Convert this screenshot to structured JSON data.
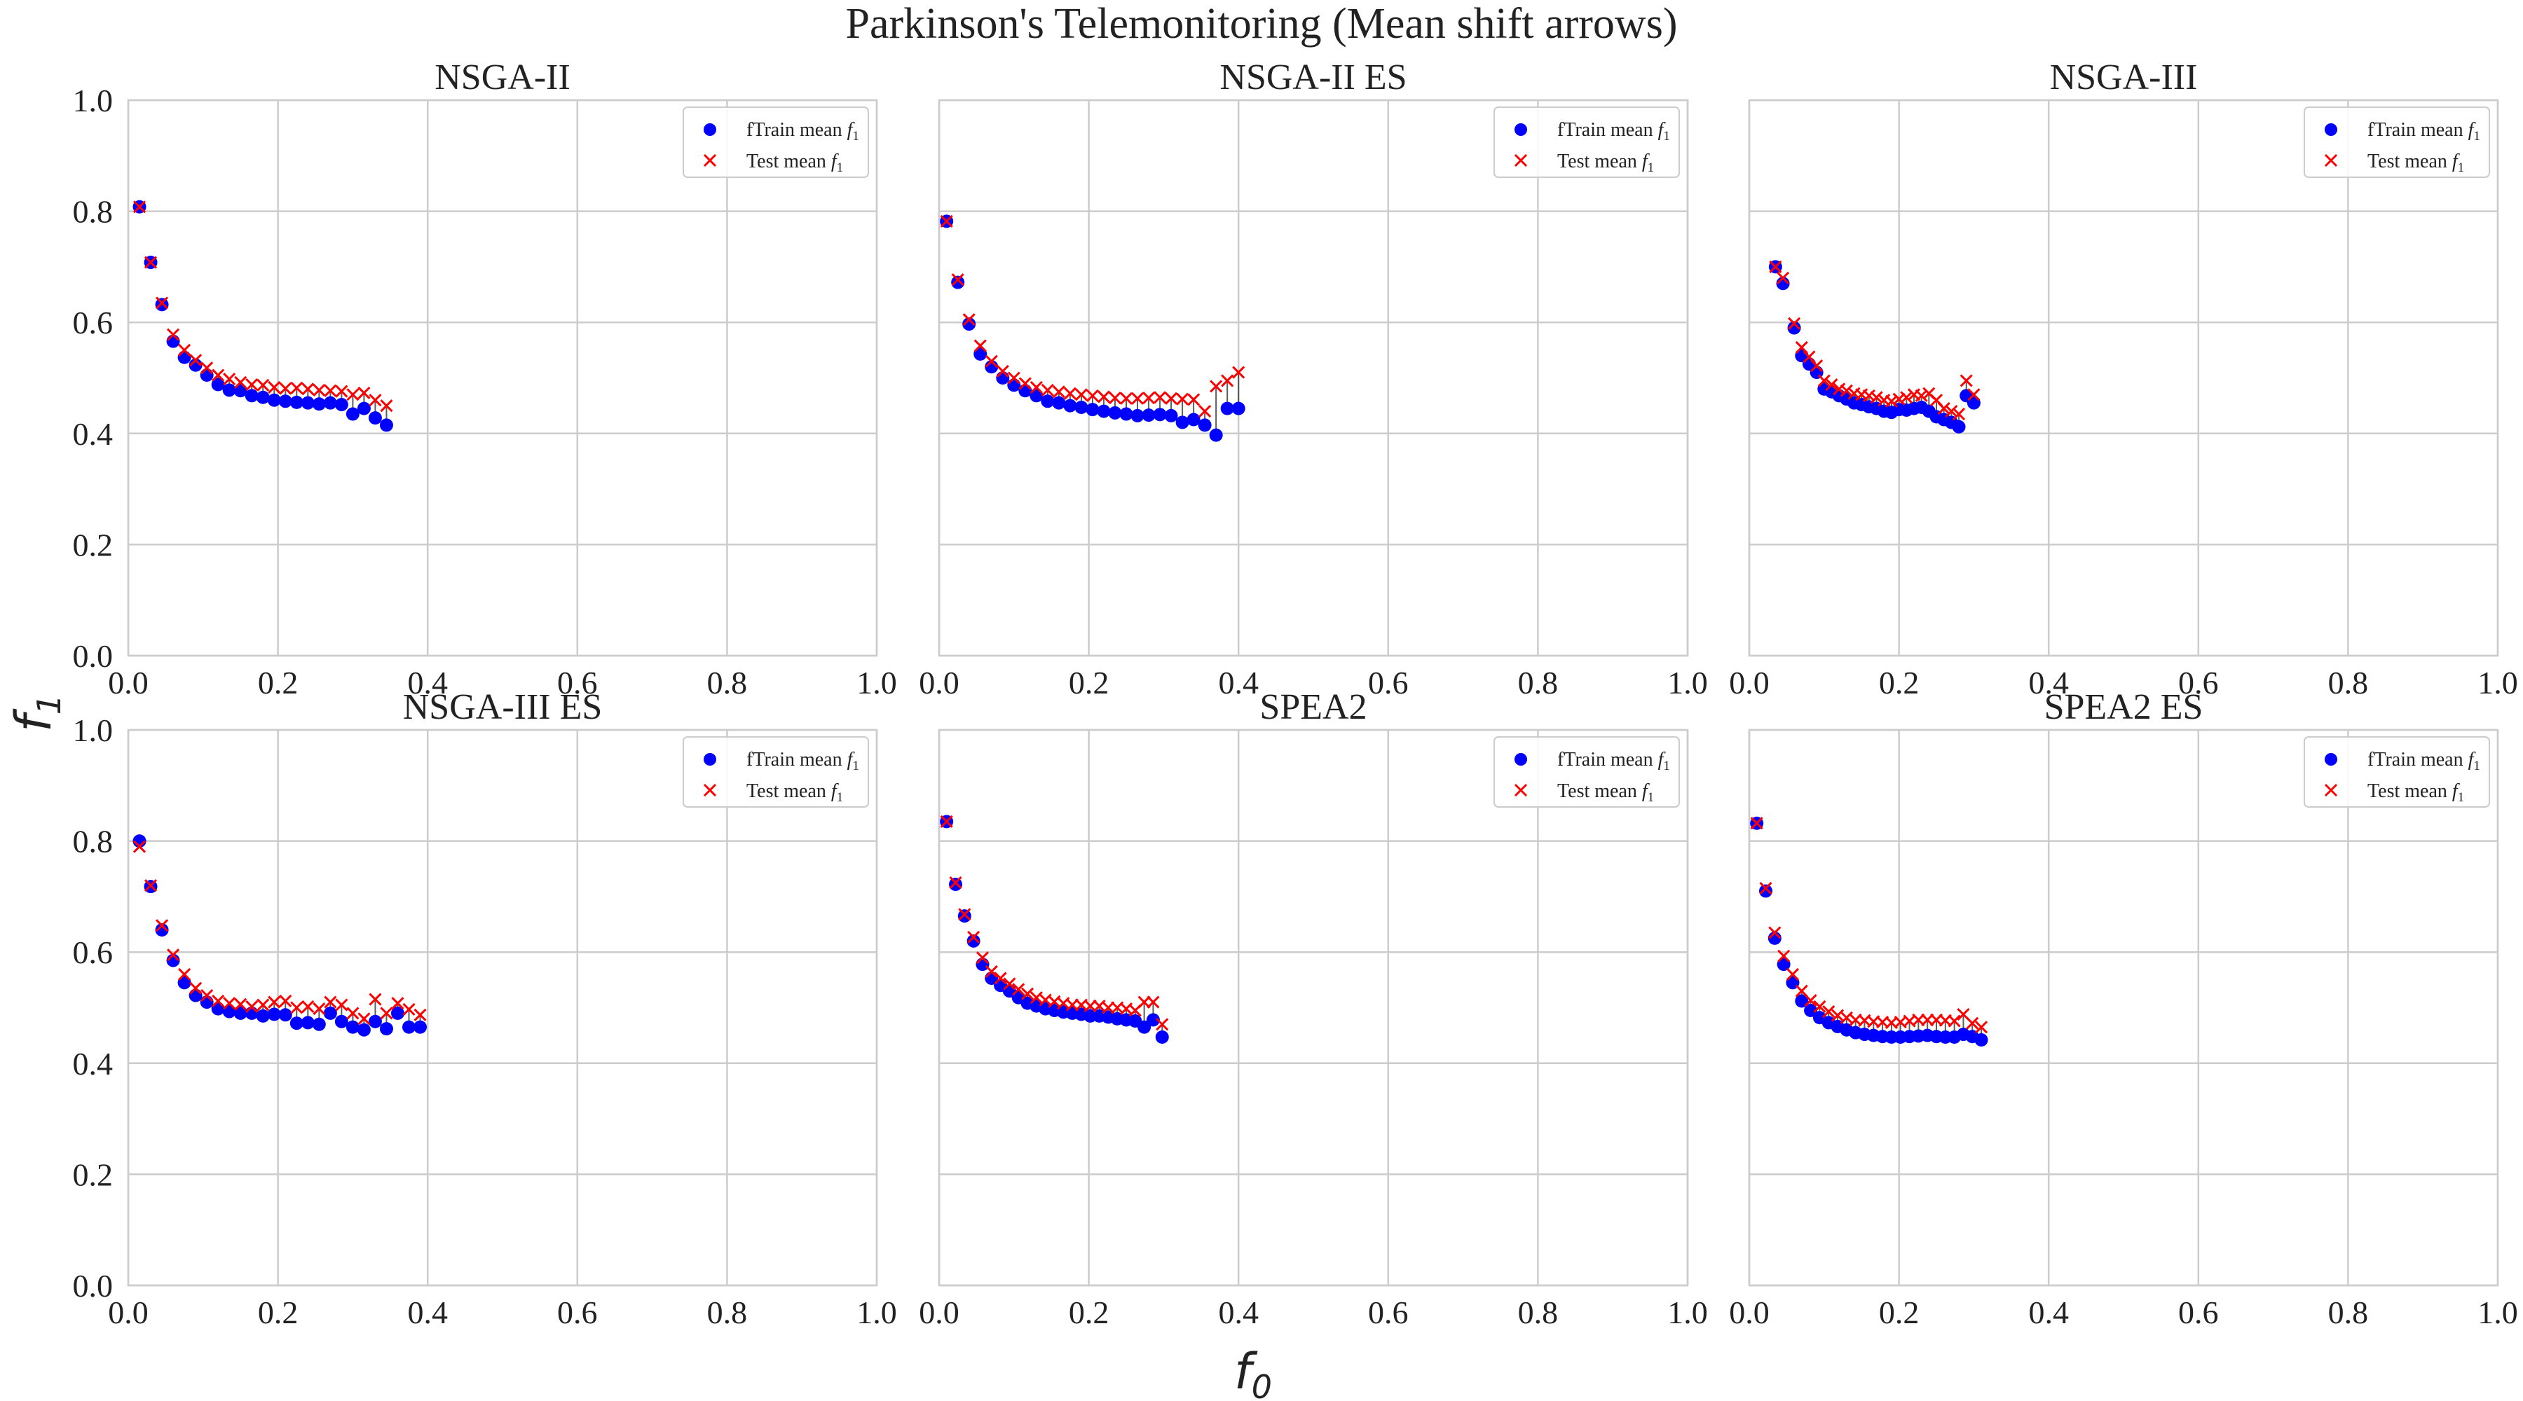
{
  "figure": {
    "suptitle": "Parkinson's Telemonitoring (Mean shift arrows)",
    "xlabel": "f",
    "xlabel_sub": "0",
    "ylabel": "f",
    "ylabel_sub": "1"
  },
  "colors": {
    "train": "#0000ff",
    "test": "#ff0000",
    "grid": "#cccccc",
    "arrow": "#333333"
  },
  "chart_data": [
    {
      "type": "scatter",
      "title": "NSGA-II",
      "xlim": [
        0,
        1
      ],
      "ylim": [
        0,
        1
      ],
      "xticks": [
        "0.0",
        "0.2",
        "0.4",
        "0.6",
        "0.8",
        "1.0"
      ],
      "yticks": [
        "0.0",
        "0.2",
        "0.4",
        "0.6",
        "0.8",
        "1.0"
      ],
      "grid": true,
      "legend_position": "upper right",
      "series": [
        {
          "name": "fTrain mean f1",
          "marker": "circle",
          "x": [
            0.015,
            0.03,
            0.045,
            0.06,
            0.075,
            0.09,
            0.105,
            0.12,
            0.135,
            0.15,
            0.165,
            0.18,
            0.195,
            0.21,
            0.225,
            0.24,
            0.255,
            0.27,
            0.285,
            0.3,
            0.315,
            0.33,
            0.345
          ],
          "y": [
            0.808,
            0.708,
            0.632,
            0.566,
            0.537,
            0.523,
            0.505,
            0.488,
            0.478,
            0.477,
            0.468,
            0.465,
            0.46,
            0.458,
            0.456,
            0.455,
            0.453,
            0.455,
            0.452,
            0.435,
            0.445,
            0.428,
            0.415
          ]
        },
        {
          "name": "Test mean f1",
          "marker": "x",
          "x": [
            0.015,
            0.03,
            0.045,
            0.06,
            0.075,
            0.09,
            0.105,
            0.12,
            0.135,
            0.15,
            0.165,
            0.18,
            0.195,
            0.21,
            0.225,
            0.24,
            0.255,
            0.27,
            0.285,
            0.3,
            0.315,
            0.33,
            0.345
          ],
          "y": [
            0.808,
            0.708,
            0.635,
            0.578,
            0.55,
            0.532,
            0.518,
            0.505,
            0.498,
            0.492,
            0.488,
            0.487,
            0.483,
            0.481,
            0.482,
            0.48,
            0.478,
            0.477,
            0.476,
            0.47,
            0.473,
            0.46,
            0.45
          ]
        }
      ]
    },
    {
      "type": "scatter",
      "title": "NSGA-II ES",
      "xlim": [
        0,
        1
      ],
      "ylim": [
        0,
        1
      ],
      "xticks": [
        "0.0",
        "0.2",
        "0.4",
        "0.6",
        "0.8",
        "1.0"
      ],
      "yticks": [],
      "grid": true,
      "legend_position": "upper right",
      "series": [
        {
          "name": "fTrain mean f1",
          "marker": "circle",
          "x": [
            0.01,
            0.025,
            0.04,
            0.055,
            0.07,
            0.085,
            0.1,
            0.115,
            0.13,
            0.145,
            0.16,
            0.175,
            0.19,
            0.205,
            0.22,
            0.235,
            0.25,
            0.265,
            0.28,
            0.295,
            0.31,
            0.325,
            0.34,
            0.355,
            0.37,
            0.385,
            0.4
          ],
          "y": [
            0.782,
            0.672,
            0.597,
            0.543,
            0.52,
            0.5,
            0.487,
            0.477,
            0.468,
            0.458,
            0.455,
            0.45,
            0.447,
            0.443,
            0.44,
            0.437,
            0.435,
            0.432,
            0.433,
            0.434,
            0.432,
            0.42,
            0.425,
            0.415,
            0.397,
            0.445,
            0.445
          ],
          "_": null
        },
        {
          "name": "Test mean f1",
          "marker": "x",
          "x": [
            0.01,
            0.025,
            0.04,
            0.055,
            0.07,
            0.085,
            0.1,
            0.115,
            0.13,
            0.145,
            0.16,
            0.175,
            0.19,
            0.205,
            0.22,
            0.235,
            0.25,
            0.265,
            0.28,
            0.295,
            0.31,
            0.325,
            0.34,
            0.355,
            0.37,
            0.385,
            0.4
          ],
          "y": [
            0.782,
            0.677,
            0.605,
            0.558,
            0.53,
            0.512,
            0.5,
            0.49,
            0.483,
            0.478,
            0.475,
            0.472,
            0.47,
            0.468,
            0.466,
            0.464,
            0.463,
            0.463,
            0.464,
            0.465,
            0.463,
            0.462,
            0.461,
            0.44,
            0.485,
            0.495,
            0.51
          ]
        }
      ]
    },
    {
      "type": "scatter",
      "title": "NSGA-III",
      "xlim": [
        0,
        1
      ],
      "ylim": [
        0,
        1
      ],
      "xticks": [
        "0.0",
        "0.2",
        "0.4",
        "0.6",
        "0.8",
        "1.0"
      ],
      "yticks": [],
      "grid": true,
      "legend_position": "upper right",
      "series": [
        {
          "name": "fTrain mean f1",
          "marker": "circle",
          "x": [
            0.035,
            0.045,
            0.06,
            0.07,
            0.08,
            0.09,
            0.1,
            0.11,
            0.12,
            0.13,
            0.14,
            0.15,
            0.16,
            0.17,
            0.18,
            0.19,
            0.2,
            0.21,
            0.22,
            0.23,
            0.24,
            0.25,
            0.26,
            0.27,
            0.28,
            0.29,
            0.3
          ],
          "y": [
            0.7,
            0.67,
            0.59,
            0.54,
            0.525,
            0.51,
            0.48,
            0.475,
            0.468,
            0.462,
            0.455,
            0.452,
            0.448,
            0.445,
            0.44,
            0.438,
            0.443,
            0.442,
            0.445,
            0.447,
            0.44,
            0.43,
            0.425,
            0.42,
            0.412,
            0.468,
            0.455
          ]
        },
        {
          "name": "Test mean f1",
          "marker": "x",
          "x": [
            0.035,
            0.045,
            0.06,
            0.07,
            0.08,
            0.09,
            0.1,
            0.11,
            0.12,
            0.13,
            0.14,
            0.15,
            0.16,
            0.17,
            0.18,
            0.19,
            0.2,
            0.21,
            0.22,
            0.23,
            0.24,
            0.25,
            0.26,
            0.27,
            0.28,
            0.29,
            0.3
          ],
          "y": [
            0.7,
            0.68,
            0.598,
            0.555,
            0.538,
            0.522,
            0.495,
            0.488,
            0.48,
            0.477,
            0.472,
            0.47,
            0.468,
            0.465,
            0.46,
            0.458,
            0.462,
            0.465,
            0.47,
            0.468,
            0.472,
            0.46,
            0.445,
            0.44,
            0.435,
            0.495,
            0.47
          ]
        }
      ]
    },
    {
      "type": "scatter",
      "title": "NSGA-III ES",
      "xlim": [
        0,
        1
      ],
      "ylim": [
        0,
        1
      ],
      "xticks": [
        "0.0",
        "0.2",
        "0.4",
        "0.6",
        "0.8",
        "1.0"
      ],
      "yticks": [
        "0.0",
        "0.2",
        "0.4",
        "0.6",
        "0.8",
        "1.0"
      ],
      "grid": true,
      "legend_position": "upper right",
      "series": [
        {
          "name": "fTrain mean f1",
          "marker": "circle",
          "x": [
            0.015,
            0.03,
            0.045,
            0.06,
            0.075,
            0.09,
            0.105,
            0.12,
            0.135,
            0.15,
            0.165,
            0.18,
            0.195,
            0.21,
            0.225,
            0.24,
            0.255,
            0.27,
            0.285,
            0.3,
            0.315,
            0.33,
            0.345,
            0.36,
            0.375,
            0.39
          ],
          "y": [
            0.8,
            0.718,
            0.64,
            0.585,
            0.545,
            0.522,
            0.51,
            0.498,
            0.493,
            0.49,
            0.49,
            0.485,
            0.488,
            0.487,
            0.472,
            0.473,
            0.47,
            0.49,
            0.475,
            0.465,
            0.46,
            0.475,
            0.462,
            0.49,
            0.465,
            0.465
          ]
        },
        {
          "name": "Test mean f1",
          "marker": "x",
          "x": [
            0.015,
            0.03,
            0.045,
            0.06,
            0.075,
            0.09,
            0.105,
            0.12,
            0.135,
            0.15,
            0.165,
            0.18,
            0.195,
            0.21,
            0.225,
            0.24,
            0.255,
            0.27,
            0.285,
            0.3,
            0.315,
            0.33,
            0.345,
            0.36,
            0.375,
            0.39
          ],
          "y": [
            0.79,
            0.72,
            0.648,
            0.595,
            0.56,
            0.535,
            0.522,
            0.512,
            0.508,
            0.506,
            0.502,
            0.505,
            0.51,
            0.512,
            0.5,
            0.502,
            0.498,
            0.51,
            0.505,
            0.49,
            0.48,
            0.515,
            0.49,
            0.508,
            0.497,
            0.487
          ]
        }
      ]
    },
    {
      "type": "scatter",
      "title": "SPEA2",
      "xlim": [
        0,
        1
      ],
      "ylim": [
        0,
        1
      ],
      "xticks": [
        "0.0",
        "0.2",
        "0.4",
        "0.6",
        "0.8",
        "1.0"
      ],
      "yticks": [],
      "grid": true,
      "legend_position": "upper right",
      "series": [
        {
          "name": "fTrain mean f1",
          "marker": "circle",
          "x": [
            0.01,
            0.022,
            0.034,
            0.046,
            0.058,
            0.07,
            0.082,
            0.094,
            0.106,
            0.118,
            0.13,
            0.142,
            0.154,
            0.166,
            0.178,
            0.19,
            0.202,
            0.214,
            0.226,
            0.238,
            0.25,
            0.262,
            0.274,
            0.286,
            0.298
          ],
          "y": [
            0.835,
            0.722,
            0.665,
            0.62,
            0.578,
            0.553,
            0.54,
            0.53,
            0.518,
            0.508,
            0.503,
            0.498,
            0.495,
            0.492,
            0.49,
            0.488,
            0.485,
            0.485,
            0.483,
            0.48,
            0.478,
            0.476,
            0.465,
            0.478,
            0.447
          ]
        },
        {
          "name": "Test mean f1",
          "marker": "x",
          "x": [
            0.01,
            0.022,
            0.034,
            0.046,
            0.058,
            0.07,
            0.082,
            0.094,
            0.106,
            0.118,
            0.13,
            0.142,
            0.154,
            0.166,
            0.178,
            0.19,
            0.202,
            0.214,
            0.226,
            0.238,
            0.25,
            0.262,
            0.274,
            0.286,
            0.298
          ],
          "y": [
            0.835,
            0.725,
            0.668,
            0.627,
            0.59,
            0.565,
            0.553,
            0.543,
            0.533,
            0.525,
            0.518,
            0.514,
            0.511,
            0.508,
            0.505,
            0.505,
            0.503,
            0.503,
            0.5,
            0.5,
            0.498,
            0.495,
            0.51,
            0.51,
            0.47
          ]
        }
      ]
    },
    {
      "type": "scatter",
      "title": "SPEA2 ES",
      "xlim": [
        0,
        1
      ],
      "ylim": [
        0,
        1
      ],
      "xticks": [
        "0.0",
        "0.2",
        "0.4",
        "0.6",
        "0.8",
        "1.0"
      ],
      "yticks": [],
      "grid": true,
      "legend_position": "upper right",
      "series": [
        {
          "name": "fTrain mean f1",
          "marker": "circle",
          "x": [
            0.01,
            0.022,
            0.034,
            0.046,
            0.058,
            0.07,
            0.082,
            0.094,
            0.106,
            0.118,
            0.13,
            0.142,
            0.154,
            0.166,
            0.178,
            0.19,
            0.202,
            0.214,
            0.226,
            0.238,
            0.25,
            0.262,
            0.274,
            0.286,
            0.298,
            0.31
          ],
          "y": [
            0.832,
            0.71,
            0.625,
            0.578,
            0.545,
            0.512,
            0.495,
            0.482,
            0.473,
            0.466,
            0.46,
            0.455,
            0.452,
            0.45,
            0.448,
            0.447,
            0.447,
            0.448,
            0.449,
            0.45,
            0.448,
            0.447,
            0.447,
            0.452,
            0.448,
            0.442
          ]
        },
        {
          "name": "Test mean f1",
          "marker": "x",
          "x": [
            0.01,
            0.022,
            0.034,
            0.046,
            0.058,
            0.07,
            0.082,
            0.094,
            0.106,
            0.118,
            0.13,
            0.142,
            0.154,
            0.166,
            0.178,
            0.19,
            0.202,
            0.214,
            0.226,
            0.238,
            0.25,
            0.262,
            0.274,
            0.286,
            0.298,
            0.31
          ],
          "y": [
            0.832,
            0.715,
            0.635,
            0.593,
            0.56,
            0.53,
            0.513,
            0.502,
            0.493,
            0.486,
            0.482,
            0.478,
            0.477,
            0.475,
            0.474,
            0.473,
            0.474,
            0.476,
            0.478,
            0.478,
            0.478,
            0.477,
            0.476,
            0.488,
            0.472,
            0.465
          ]
        }
      ]
    }
  ],
  "legend": {
    "train_label": "fTrain mean ",
    "test_label": "Test mean ",
    "sym": "f",
    "sub": "1"
  }
}
